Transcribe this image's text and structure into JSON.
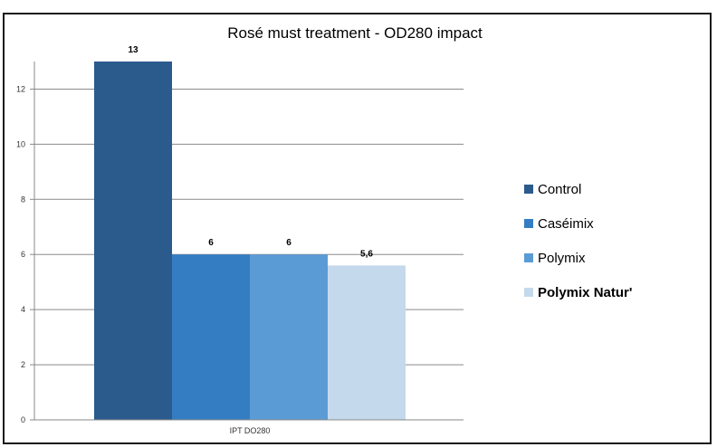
{
  "chart_data": {
    "type": "bar",
    "title": "Rosé must treatment - OD280 impact",
    "categories": [
      "IPT DO280"
    ],
    "series": [
      {
        "name": "Control",
        "values": [
          13
        ],
        "label": "13",
        "color": "#2b5a8c"
      },
      {
        "name": "Caséimix",
        "values": [
          6
        ],
        "label": "6",
        "color": "#357dc2"
      },
      {
        "name": "Polymix",
        "values": [
          6
        ],
        "label": "6",
        "color": "#5b9bd5"
      },
      {
        "name": "Polymix Natur'",
        "values": [
          5.6
        ],
        "label": "5,6",
        "color": "#c5d9ec"
      }
    ],
    "ylim": [
      0,
      13
    ],
    "yticks": [
      0,
      2,
      4,
      6,
      8,
      10,
      12
    ],
    "grid": true,
    "legend_position": "right"
  }
}
